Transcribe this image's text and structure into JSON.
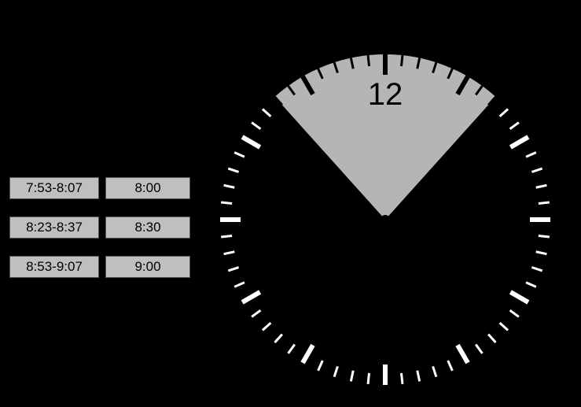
{
  "table": {
    "rows": [
      {
        "range": "7:53-8:07",
        "time": "8:00"
      },
      {
        "range": "8:23-8:37",
        "time": "8:30"
      },
      {
        "range": "8:53-9:07",
        "time": "9:00"
      }
    ]
  },
  "clock": {
    "numeral": "12",
    "numeral_fontsize": 40,
    "face_color": "#000000",
    "tick_color": "#ffffff",
    "sector_color": "#b5b5b5",
    "sector_tick_color": "#000000",
    "hand_color": "#000000",
    "sector_start_deg": -42,
    "sector_end_deg": 42,
    "hand_angle_deg": -22,
    "radius_outer": 210,
    "tick_len_major": 26,
    "tick_len_minor": 14,
    "tick_width_major": 6,
    "tick_width_minor": 3,
    "hand_length": 190,
    "hand_width_base": 10,
    "background_color": "#000000"
  }
}
